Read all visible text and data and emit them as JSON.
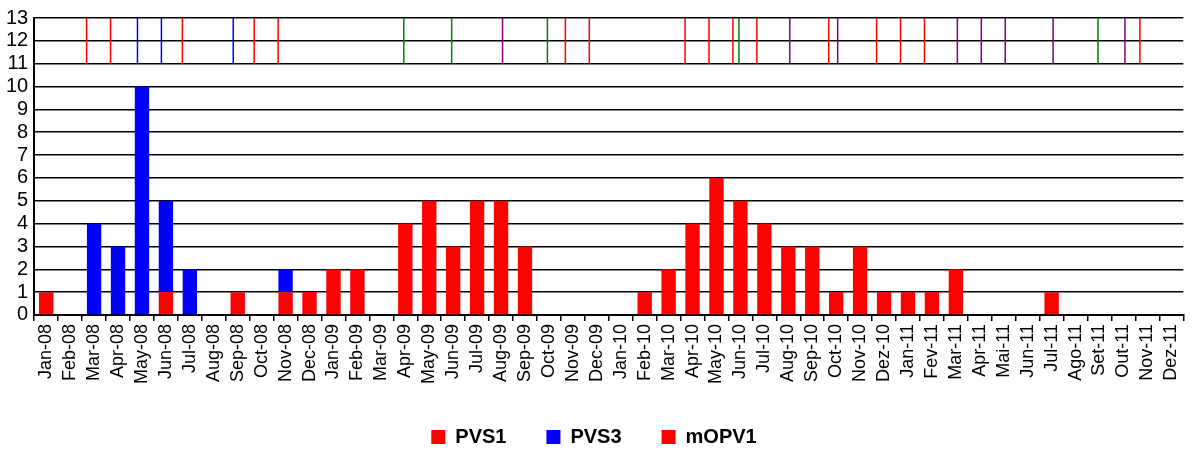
{
  "chart_data": {
    "type": "bar",
    "categories": [
      "Jan-08",
      "Feb-08",
      "Mar-08",
      "Apr-08",
      "May-08",
      "Jun-08",
      "Jul-08",
      "Aug-08",
      "Sep-08",
      "Oct-08",
      "Nov-08",
      "Dec-08",
      "Jan-09",
      "Feb-09",
      "Mar-09",
      "Apr-09",
      "May-09",
      "Jun-09",
      "Jul-09",
      "Aug-09",
      "Sep-09",
      "Oct-09",
      "Nov-09",
      "Dec-09",
      "Jan-10",
      "Feb-10",
      "Mar-10",
      "Apr-10",
      "May-10",
      "Jun-10",
      "Jul-10",
      "Aug-10",
      "Sep-10",
      "Oct-10",
      "Nov-10",
      "Dez-10",
      "Jan-11",
      "Fev-11",
      "Mar-11",
      "Apr-11",
      "Mai-11",
      "Jun-11",
      "Jul-11",
      "Ago-11",
      "Set-11",
      "Out-11",
      "Nov-11",
      "Dez-11"
    ],
    "series": [
      {
        "name": "PVS1",
        "color": "#ff0000",
        "values": [
          1,
          null,
          null,
          null,
          null,
          1,
          null,
          null,
          1,
          null,
          1,
          1,
          2,
          2,
          null,
          4,
          5,
          3,
          5,
          5,
          3,
          null,
          null,
          null,
          null,
          1,
          2,
          4,
          6,
          5,
          4,
          3,
          3,
          1,
          3,
          1,
          1,
          1,
          2,
          null,
          null,
          null,
          1,
          null,
          null,
          null,
          null,
          null
        ]
      },
      {
        "name": "PVS3",
        "color": "#0000ff",
        "values": [
          null,
          null,
          4,
          3,
          10,
          4,
          2,
          null,
          null,
          null,
          1,
          null,
          null,
          null,
          null,
          null,
          null,
          null,
          null,
          null,
          null,
          null,
          null,
          null,
          null,
          null,
          null,
          null,
          null,
          null,
          null,
          null,
          null,
          null,
          null,
          null,
          null,
          null,
          null,
          null,
          null,
          null,
          null,
          null,
          null,
          null,
          null,
          null
        ],
        "base": [
          null,
          null,
          0,
          0,
          0,
          1,
          0,
          null,
          null,
          null,
          1,
          null,
          null,
          null,
          null,
          null,
          null,
          null,
          null,
          null,
          null,
          null,
          null,
          null,
          null,
          null,
          null,
          null,
          null,
          null,
          null,
          null,
          null,
          null,
          null,
          null,
          null,
          null,
          null,
          null,
          null,
          null,
          null,
          null,
          null,
          null,
          null,
          null
        ]
      },
      {
        "name": "mOPV1",
        "color": "#ff0000",
        "values": [
          null,
          null,
          2,
          2,
          null,
          null,
          2,
          null,
          null,
          2,
          2,
          null,
          null,
          null,
          null,
          null,
          null,
          null,
          null,
          null,
          null,
          null,
          2,
          2,
          null,
          null,
          null,
          2,
          2,
          2,
          2,
          null,
          null,
          2,
          null,
          2,
          2,
          2,
          null,
          null,
          null,
          null,
          null,
          null,
          null,
          null,
          2,
          null
        ],
        "base": [
          null,
          null,
          11,
          11,
          null,
          null,
          11,
          null,
          null,
          11,
          11,
          null,
          null,
          null,
          null,
          null,
          null,
          null,
          null,
          null,
          null,
          null,
          11,
          11,
          null,
          null,
          null,
          11,
          11,
          11,
          11,
          null,
          null,
          11,
          null,
          11,
          11,
          11,
          null,
          null,
          null,
          null,
          null,
          null,
          null,
          null,
          11,
          null
        ]
      },
      {
        "color": "#0000ff",
        "values": [
          null,
          null,
          null,
          null,
          2,
          2,
          null,
          null,
          2,
          null,
          null,
          null,
          null,
          null,
          null,
          null,
          null,
          null,
          null,
          null,
          null,
          null,
          null,
          null,
          null,
          null,
          null,
          null,
          null,
          null,
          null,
          null,
          null,
          null,
          null,
          null,
          null,
          null,
          null,
          null,
          null,
          null,
          null,
          null,
          null,
          null,
          null,
          null
        ],
        "base": [
          null,
          null,
          null,
          null,
          11,
          11,
          null,
          null,
          11,
          null,
          null,
          null,
          null,
          null,
          null,
          null,
          null,
          null,
          null,
          null,
          null,
          null,
          null,
          null,
          null,
          null,
          null,
          null,
          null,
          null,
          null,
          null,
          null,
          null,
          null,
          null,
          null,
          null,
          null,
          null,
          null,
          null,
          null,
          null,
          null,
          null,
          null,
          null
        ]
      },
      {
        "color": "#008000",
        "values": [
          null,
          null,
          null,
          null,
          null,
          null,
          null,
          null,
          null,
          null,
          null,
          null,
          null,
          null,
          null,
          2,
          null,
          2,
          null,
          null,
          null,
          2,
          null,
          null,
          null,
          null,
          null,
          null,
          null,
          2,
          null,
          null,
          null,
          null,
          null,
          null,
          null,
          null,
          null,
          null,
          null,
          null,
          null,
          null,
          2,
          null,
          null,
          null
        ],
        "base": [
          null,
          null,
          null,
          null,
          null,
          null,
          null,
          null,
          null,
          null,
          null,
          null,
          null,
          null,
          null,
          11,
          null,
          11,
          null,
          null,
          null,
          11,
          null,
          null,
          null,
          null,
          null,
          null,
          null,
          11,
          null,
          null,
          null,
          null,
          null,
          null,
          null,
          null,
          null,
          null,
          null,
          null,
          null,
          null,
          11,
          null,
          null,
          null
        ]
      },
      {
        "color": "#800080",
        "values": [
          null,
          null,
          null,
          null,
          null,
          null,
          null,
          null,
          null,
          null,
          null,
          null,
          null,
          null,
          null,
          null,
          null,
          null,
          null,
          2,
          null,
          null,
          null,
          null,
          null,
          null,
          null,
          null,
          null,
          null,
          null,
          2,
          null,
          2,
          null,
          null,
          null,
          null,
          2,
          2,
          2,
          null,
          2,
          null,
          null,
          2,
          null,
          null
        ],
        "base": [
          null,
          null,
          null,
          null,
          null,
          null,
          null,
          null,
          null,
          null,
          null,
          null,
          null,
          null,
          null,
          null,
          null,
          null,
          null,
          11,
          null,
          null,
          null,
          null,
          null,
          null,
          null,
          null,
          null,
          null,
          null,
          11,
          null,
          11,
          null,
          null,
          null,
          null,
          11,
          11,
          11,
          null,
          11,
          null,
          null,
          11,
          null,
          null
        ]
      }
    ],
    "ylim": [
      0,
      13
    ],
    "yticks": [
      0,
      1,
      2,
      3,
      4,
      5,
      6,
      7,
      8,
      9,
      10,
      11,
      12,
      13
    ],
    "grid": "y",
    "legend": "bottom"
  }
}
